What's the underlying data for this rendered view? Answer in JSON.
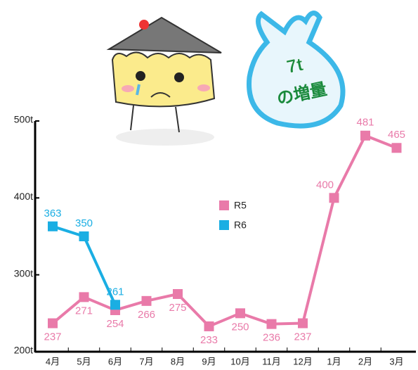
{
  "chart_data": {
    "type": "line",
    "annotation": [
      "7t",
      "の増量"
    ],
    "categories": [
      "4月",
      "5月",
      "6月",
      "7月",
      "8月",
      "9月",
      "10月",
      "11月",
      "12月",
      "1月",
      "2月",
      "3月"
    ],
    "series": [
      {
        "name": "R5",
        "color": "#e97aa9",
        "values": [
          237,
          271,
          254,
          266,
          275,
          233,
          250,
          236,
          237,
          400,
          481,
          465
        ]
      },
      {
        "name": "R6",
        "color": "#1aaee3",
        "values": [
          363,
          350,
          261,
          null,
          null,
          null,
          null,
          null,
          null,
          null,
          null,
          null
        ]
      }
    ],
    "ylim": [
      200,
      500
    ],
    "yticks": [
      {
        "value": 200,
        "label": "200t"
      },
      {
        "value": 300,
        "label": "300t"
      },
      {
        "value": 400,
        "label": "400t"
      },
      {
        "value": 500,
        "label": "500t"
      }
    ],
    "grid": false
  }
}
